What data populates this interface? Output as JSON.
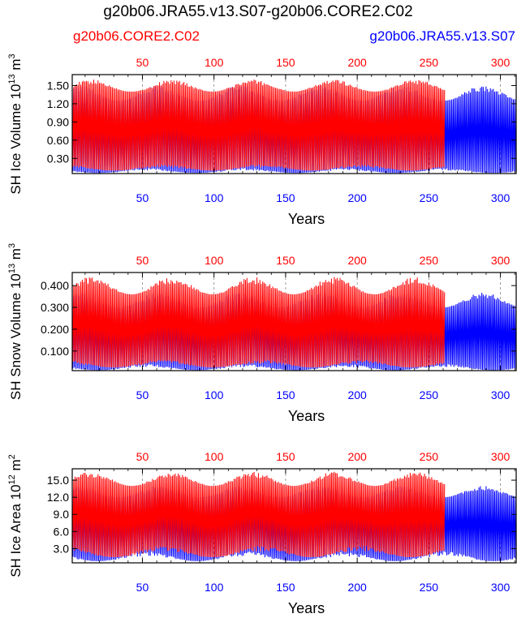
{
  "title": "g20b06.JRA55.v13.S07-g20b06.CORE2.C02",
  "legend": {
    "left": {
      "label": "g20b06.CORE2.C02",
      "color": "#ff0000"
    },
    "right": {
      "label": "g20b06.JRA55.v13.S07",
      "color": "#0000ff"
    }
  },
  "chart_data": [
    {
      "type": "line",
      "name": "ice-volume",
      "ylabel_main": "SH Ice Volume 10",
      "ylabel_exp": "13",
      "ylabel_unit": " m",
      "ylabel_unit_exp": "3",
      "xlabel": "Years",
      "xlim": [
        1,
        311
      ],
      "ylim": [
        0.05,
        1.68
      ],
      "yticks": [
        0.3,
        0.6,
        0.9,
        1.2,
        1.5
      ],
      "ytick_labels": [
        "0.30",
        "0.60",
        "0.90",
        "1.20",
        "1.50"
      ],
      "xticks": [
        50,
        100,
        150,
        200,
        250,
        300
      ],
      "xtick_labels": [
        "50",
        "100",
        "150",
        "200",
        "250",
        "300"
      ],
      "top_axis_color": "#ff0000",
      "bottom_axis_color": "#0000ff",
      "series": [
        {
          "name": "g20b06.CORE2.C02",
          "color": "#ff0000",
          "years": [
            1,
            261
          ],
          "min": [
            0.1,
            0.2
          ],
          "max": [
            1.4,
            1.6
          ]
        },
        {
          "name": "g20b06.JRA55.v13.S07",
          "color": "#0000ff",
          "years": [
            1,
            311
          ],
          "min": [
            0.06,
            0.14
          ],
          "max": [
            1.25,
            1.5
          ]
        }
      ]
    },
    {
      "type": "line",
      "name": "snow-volume",
      "ylabel_main": "SH Snow Volume 10",
      "ylabel_exp": "13",
      "ylabel_unit": " m",
      "ylabel_unit_exp": "3",
      "xlabel": "Years",
      "xlim": [
        1,
        311
      ],
      "ylim": [
        0.01,
        0.46
      ],
      "yticks": [
        0.1,
        0.2,
        0.3,
        0.4
      ],
      "ytick_labels": [
        "0.100",
        "0.200",
        "0.300",
        "0.400"
      ],
      "xticks": [
        50,
        100,
        150,
        200,
        250,
        300
      ],
      "xtick_labels": [
        "50",
        "100",
        "150",
        "200",
        "250",
        "300"
      ],
      "top_axis_color": "#ff0000",
      "bottom_axis_color": "#0000ff",
      "series": [
        {
          "name": "g20b06.CORE2.C02",
          "color": "#ff0000",
          "years": [
            1,
            261
          ],
          "min": [
            0.025,
            0.06
          ],
          "max": [
            0.36,
            0.44
          ]
        },
        {
          "name": "g20b06.JRA55.v13.S07",
          "color": "#0000ff",
          "years": [
            1,
            311
          ],
          "min": [
            0.012,
            0.04
          ],
          "max": [
            0.3,
            0.37
          ]
        }
      ]
    },
    {
      "type": "line",
      "name": "ice-area",
      "ylabel_main": "SH Ice Area 10",
      "ylabel_exp": "12",
      "ylabel_unit": " m",
      "ylabel_unit_exp": "2",
      "xlabel": "Years",
      "xlim": [
        1,
        311
      ],
      "ylim": [
        0.5,
        17.0
      ],
      "yticks": [
        3.0,
        6.0,
        9.0,
        12.0,
        15.0
      ],
      "ytick_labels": [
        "3.0",
        "6.0",
        "9.0",
        "12.0",
        "15.0"
      ],
      "xticks": [
        50,
        100,
        150,
        200,
        250,
        300
      ],
      "xtick_labels": [
        "50",
        "100",
        "150",
        "200",
        "250",
        "300"
      ],
      "top_axis_color": "#ff0000",
      "bottom_axis_color": "#0000ff",
      "series": [
        {
          "name": "g20b06.CORE2.C02",
          "color": "#ff0000",
          "years": [
            1,
            261
          ],
          "min": [
            1.5,
            3.5
          ],
          "max": [
            14.0,
            16.5
          ]
        },
        {
          "name": "g20b06.JRA55.v13.S07",
          "color": "#0000ff",
          "years": [
            1,
            311
          ],
          "min": [
            0.8,
            2.5
          ],
          "max": [
            12.0,
            14.0
          ]
        }
      ]
    }
  ]
}
